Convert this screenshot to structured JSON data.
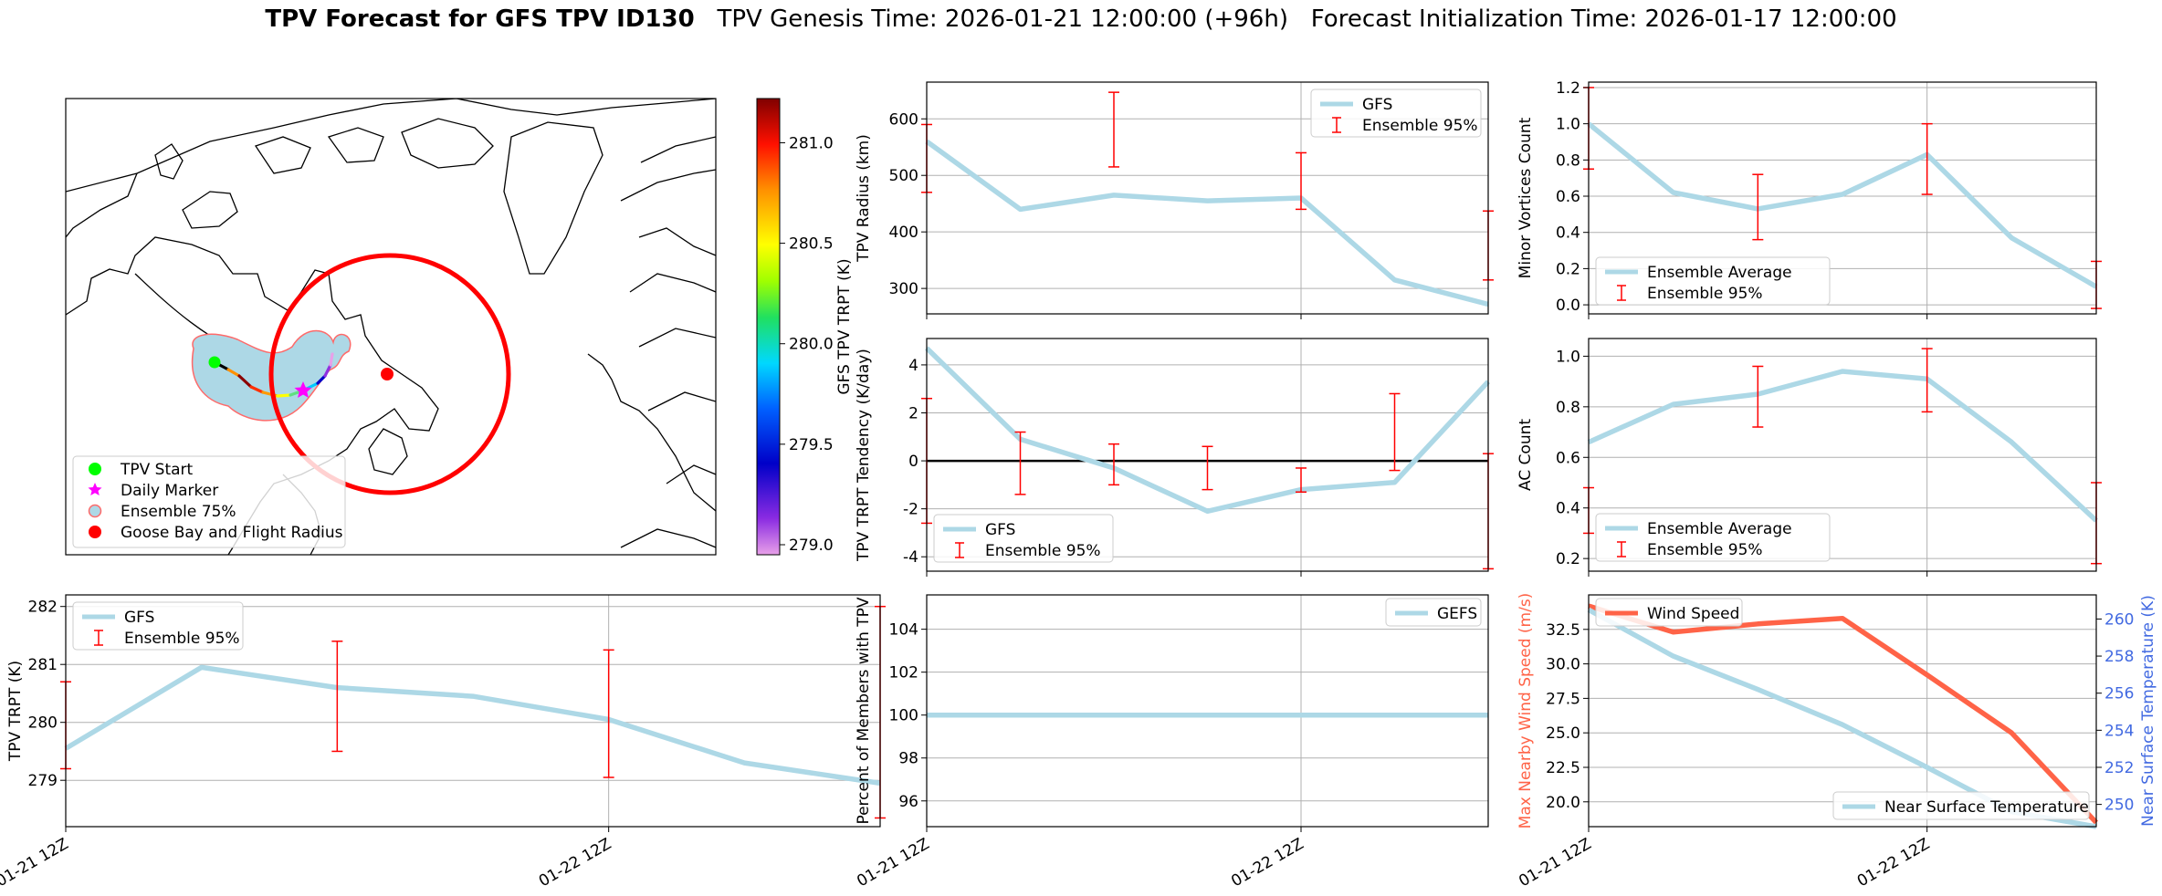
{
  "header": {
    "title_bold": "TPV Forecast for GFS TPV ID130",
    "genesis": "TPV Genesis Time: 2026-01-21 12:00:00 (+96h)",
    "init": "Forecast Initialization Time: 2026-01-17 12:00:00"
  },
  "colors": {
    "light_blue": "#add8e6",
    "red": "#ff0000",
    "tomato": "#ff6347",
    "royal_blue": "#4169e1",
    "green": "#00ff00",
    "magenta": "#ff00ff"
  },
  "map": {
    "legend": [
      "TPV Start",
      "Daily Marker",
      "Ensemble 75%",
      "Goose Bay and Flight Radius"
    ],
    "colorbar": {
      "label": "GFS TPV TRPT (K)",
      "ticks": [
        "279.0",
        "279.5",
        "280.0",
        "280.5",
        "281.0"
      ],
      "tick_values": [
        279.0,
        279.5,
        280.0,
        280.5,
        281.0
      ],
      "range": [
        278.95,
        281.22
      ]
    }
  },
  "chart_data": [
    {
      "id": "radius",
      "type": "line",
      "ylabel": "TPV Radius (km)",
      "xlim": [
        0,
        6
      ],
      "ylim": [
        255,
        665
      ],
      "yticks": [
        300,
        400,
        500,
        600
      ],
      "xticks": [
        0,
        4
      ],
      "xticklabels": [],
      "series": [
        {
          "name": "GFS",
          "x": [
            0,
            1,
            2,
            3,
            4,
            5,
            6
          ],
          "values": [
            560,
            440,
            465,
            455,
            460,
            315,
            272
          ]
        }
      ],
      "errorbars": [
        {
          "x": 0,
          "lo": 470,
          "hi": 590
        },
        {
          "x": 2,
          "lo": 515,
          "hi": 647
        },
        {
          "x": 4,
          "lo": 440,
          "hi": 540
        },
        {
          "x": 6,
          "lo": 315,
          "hi": 437
        }
      ],
      "legend": {
        "entries": [
          "GFS",
          "Ensemble 95%"
        ],
        "loc": "upper right"
      }
    },
    {
      "id": "minor",
      "type": "line",
      "ylabel": "Minor Vortices Count",
      "xlim": [
        0,
        6
      ],
      "ylim": [
        -0.05,
        1.23
      ],
      "yticks": [
        0.0,
        0.2,
        0.4,
        0.6,
        0.8,
        1.0,
        1.2
      ],
      "ytickfmt": 1,
      "xticks": [
        0,
        4
      ],
      "xticklabels": [],
      "series": [
        {
          "name": "Ensemble Average",
          "x": [
            0,
            1,
            2,
            3,
            4,
            5,
            6
          ],
          "values": [
            1.0,
            0.62,
            0.53,
            0.61,
            0.83,
            0.37,
            0.1
          ]
        }
      ],
      "errorbars": [
        {
          "x": 0,
          "lo": 0.75,
          "hi": 1.2
        },
        {
          "x": 2,
          "lo": 0.36,
          "hi": 0.72
        },
        {
          "x": 4,
          "lo": 0.61,
          "hi": 1.0
        },
        {
          "x": 6,
          "lo": -0.02,
          "hi": 0.24
        }
      ],
      "legend": {
        "entries": [
          "Ensemble Average",
          "Ensemble 95%"
        ],
        "loc": "lower left"
      }
    },
    {
      "id": "tendency",
      "type": "line",
      "ylabel": "TPV TRPT Tendency (K/day)",
      "xlim": [
        0,
        6
      ],
      "ylim": [
        -4.6,
        5.1
      ],
      "yticks": [
        -4,
        -2,
        0,
        2,
        4
      ],
      "xticks": [
        0,
        4
      ],
      "xticklabels": [],
      "zero_line": true,
      "series": [
        {
          "name": "GFS",
          "x": [
            0,
            1,
            2,
            3,
            4,
            5,
            6
          ],
          "values": [
            4.7,
            0.9,
            -0.3,
            -2.1,
            -1.2,
            -0.9,
            3.3
          ]
        }
      ],
      "errorbars": [
        {
          "x": 0,
          "lo": -2.6,
          "hi": 2.6
        },
        {
          "x": 1,
          "lo": -1.4,
          "hi": 1.2
        },
        {
          "x": 2,
          "lo": -1.0,
          "hi": 0.7
        },
        {
          "x": 3,
          "lo": -1.2,
          "hi": 0.6
        },
        {
          "x": 4,
          "lo": -1.3,
          "hi": -0.3
        },
        {
          "x": 5,
          "lo": -0.4,
          "hi": 2.8
        },
        {
          "x": 6,
          "lo": -4.5,
          "hi": 0.3
        }
      ],
      "legend": {
        "entries": [
          "GFS",
          "Ensemble 95%"
        ],
        "loc": "lower left"
      }
    },
    {
      "id": "ac",
      "type": "line",
      "ylabel": "AC Count",
      "xlim": [
        0,
        6
      ],
      "ylim": [
        0.15,
        1.07
      ],
      "yticks": [
        0.2,
        0.4,
        0.6,
        0.8,
        1.0
      ],
      "ytickfmt": 1,
      "xticks": [
        0,
        4
      ],
      "xticklabels": [],
      "series": [
        {
          "name": "Ensemble Average",
          "x": [
            0,
            1,
            2,
            3,
            4,
            5,
            6
          ],
          "values": [
            0.66,
            0.81,
            0.85,
            0.94,
            0.91,
            0.66,
            0.35
          ]
        }
      ],
      "errorbars": [
        {
          "x": 0,
          "lo": 0.3,
          "hi": 0.48
        },
        {
          "x": 2,
          "lo": 0.72,
          "hi": 0.96
        },
        {
          "x": 4,
          "lo": 0.78,
          "hi": 1.03
        },
        {
          "x": 6,
          "lo": 0.18,
          "hi": 0.5
        }
      ],
      "legend": {
        "entries": [
          "Ensemble Average",
          "Ensemble 95%"
        ],
        "loc": "lower left"
      }
    },
    {
      "id": "trpt",
      "type": "line",
      "ylabel": "TPV TRPT (K)",
      "xlim": [
        0,
        6
      ],
      "ylim": [
        278.2,
        282.2
      ],
      "yticks": [
        279,
        280,
        281,
        282
      ],
      "xticks": [
        0,
        4
      ],
      "xticklabels": [
        "01-21 12Z",
        "01-22 12Z"
      ],
      "series": [
        {
          "name": "GFS",
          "x": [
            0,
            1,
            2,
            3,
            4,
            5,
            6
          ],
          "values": [
            279.55,
            280.95,
            280.6,
            280.45,
            280.05,
            279.3,
            278.95
          ]
        }
      ],
      "errorbars": [
        {
          "x": 0,
          "lo": 279.2,
          "hi": 280.7
        },
        {
          "x": 2,
          "lo": 279.5,
          "hi": 281.4
        },
        {
          "x": 4,
          "lo": 279.05,
          "hi": 281.25
        },
        {
          "x": 6,
          "lo": 278.35,
          "hi": 282.0
        }
      ],
      "legend": {
        "entries": [
          "GFS",
          "Ensemble 95%"
        ],
        "loc": "upper left"
      }
    },
    {
      "id": "percent",
      "type": "line",
      "ylabel": "Percent of Members with TPV",
      "xlim": [
        0,
        6
      ],
      "ylim": [
        94.8,
        105.6
      ],
      "yticks": [
        96,
        98,
        100,
        102,
        104
      ],
      "xticks": [
        0,
        4
      ],
      "xticklabels": [
        "01-21 12Z",
        "01-22 12Z"
      ],
      "series": [
        {
          "name": "GEFS",
          "x": [
            0,
            1,
            2,
            3,
            4,
            5,
            6
          ],
          "values": [
            100,
            100,
            100,
            100,
            100,
            100,
            100
          ]
        }
      ],
      "errorbars": [],
      "legend": {
        "entries": [
          "GEFS"
        ],
        "loc": "upper right"
      }
    },
    {
      "id": "wind",
      "type": "line",
      "ylabel": "Max Nearby Wind Speed (m/s)",
      "ylabel_right": "Near Surface Temperature (K)",
      "xlim": [
        0,
        6
      ],
      "ylim": [
        18.2,
        35.0
      ],
      "ylim_right": [
        248.8,
        261.3
      ],
      "yticks": [
        20.0,
        22.5,
        25.0,
        27.5,
        30.0,
        32.5
      ],
      "ytickfmt": 1,
      "yticks_right": [
        250,
        252,
        254,
        256,
        258,
        260
      ],
      "xticks": [
        0,
        4
      ],
      "xticklabels": [
        "01-21 12Z",
        "01-22 12Z"
      ],
      "series": [
        {
          "name": "Wind Speed",
          "axis": "left",
          "x": [
            0,
            1,
            2,
            3,
            4,
            5,
            6
          ],
          "values": [
            34.2,
            32.3,
            32.9,
            33.3,
            29.2,
            25.0,
            18.5
          ]
        },
        {
          "name": "Near Surface Temperature",
          "axis": "right",
          "x": [
            0,
            1,
            2,
            3,
            4,
            5,
            6
          ],
          "values": [
            260.5,
            258.0,
            256.2,
            254.3,
            252.0,
            249.6,
            248.8
          ]
        }
      ],
      "errorbars": [],
      "legend": {
        "entries": [
          "Wind Speed"
        ],
        "loc": "upper left"
      },
      "legend_right": {
        "entries": [
          "Near Surface Temperature"
        ],
        "loc": "lower right"
      }
    }
  ]
}
